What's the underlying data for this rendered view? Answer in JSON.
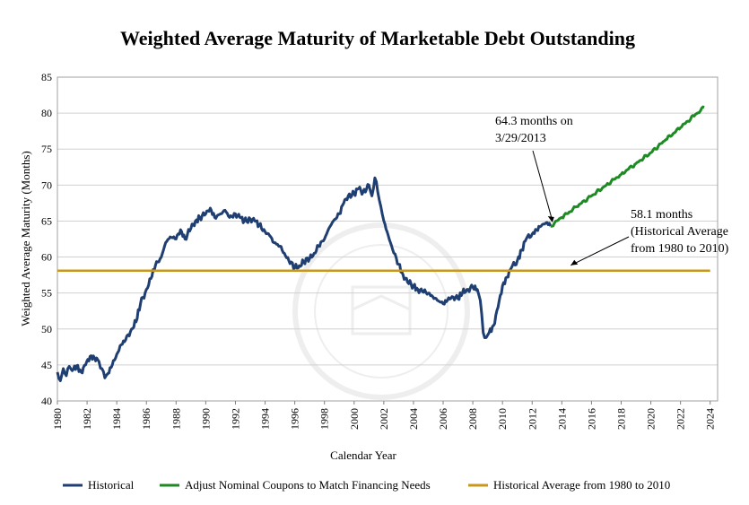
{
  "chart_data": {
    "type": "line",
    "title": "Weighted Average Maturity of Marketable Debt Outstanding",
    "xlabel": "Calendar Year",
    "ylabel": "Weighted Average Maturity (Months)",
    "xlim": [
      1980,
      2024.5
    ],
    "ylim": [
      40,
      85
    ],
    "y_ticks": [
      40,
      45,
      50,
      55,
      60,
      65,
      70,
      75,
      80,
      85
    ],
    "x_ticks": [
      1980,
      1982,
      1984,
      1986,
      1988,
      1990,
      1992,
      1994,
      1996,
      1998,
      2000,
      2002,
      2004,
      2006,
      2008,
      2010,
      2012,
      2014,
      2016,
      2018,
      2020,
      2022,
      2024
    ],
    "x_tick_labels": [
      "1980",
      "1982",
      "1984",
      "1986",
      "1988",
      "1990",
      "1992",
      "1994",
      "1996",
      "1998",
      "2000",
      "2002",
      "2004",
      "2006",
      "2008",
      "2010",
      "2012",
      "2014",
      "2016",
      "2018",
      "2020",
      "2022",
      "2024"
    ],
    "grid": "horizontal",
    "legend_position": "bottom",
    "series": [
      {
        "name": "Historical",
        "color": "#1f3f73",
        "points": [
          [
            1980.0,
            44.0
          ],
          [
            1980.2,
            42.8
          ],
          [
            1980.4,
            44.5
          ],
          [
            1980.6,
            43.5
          ],
          [
            1980.8,
            44.8
          ],
          [
            1981.0,
            44.2
          ],
          [
            1981.3,
            44.9
          ],
          [
            1981.6,
            44.0
          ],
          [
            1981.9,
            45.0
          ],
          [
            1982.2,
            46.2
          ],
          [
            1982.5,
            46.0
          ],
          [
            1982.8,
            45.5
          ],
          [
            1983.0,
            44.5
          ],
          [
            1983.2,
            43.2
          ],
          [
            1983.4,
            43.8
          ],
          [
            1983.7,
            45.0
          ],
          [
            1984.0,
            46.5
          ],
          [
            1984.3,
            47.8
          ],
          [
            1984.6,
            48.5
          ],
          [
            1985.0,
            50.0
          ],
          [
            1985.3,
            51.0
          ],
          [
            1985.6,
            53.5
          ],
          [
            1986.0,
            55.5
          ],
          [
            1986.3,
            57.0
          ],
          [
            1986.6,
            58.8
          ],
          [
            1987.0,
            60.0
          ],
          [
            1987.3,
            62.0
          ],
          [
            1987.6,
            62.8
          ],
          [
            1988.0,
            62.5
          ],
          [
            1988.3,
            63.8
          ],
          [
            1988.6,
            62.5
          ],
          [
            1989.0,
            64.0
          ],
          [
            1989.3,
            65.0
          ],
          [
            1989.6,
            65.5
          ],
          [
            1990.0,
            66.0
          ],
          [
            1990.3,
            66.8
          ],
          [
            1990.6,
            65.5
          ],
          [
            1991.0,
            66.0
          ],
          [
            1991.3,
            66.5
          ],
          [
            1991.6,
            65.5
          ],
          [
            1992.0,
            66.0
          ],
          [
            1992.3,
            65.5
          ],
          [
            1992.6,
            65.0
          ],
          [
            1993.0,
            65.3
          ],
          [
            1993.3,
            65.0
          ],
          [
            1993.6,
            64.5
          ],
          [
            1994.0,
            63.5
          ],
          [
            1994.3,
            63.0
          ],
          [
            1994.6,
            62.0
          ],
          [
            1995.0,
            61.5
          ],
          [
            1995.3,
            60.5
          ],
          [
            1995.6,
            59.5
          ],
          [
            1996.0,
            58.5
          ],
          [
            1996.3,
            58.8
          ],
          [
            1996.6,
            59.3
          ],
          [
            1997.0,
            59.8
          ],
          [
            1997.3,
            60.5
          ],
          [
            1997.6,
            61.5
          ],
          [
            1998.0,
            62.5
          ],
          [
            1998.3,
            64.0
          ],
          [
            1998.6,
            65.0
          ],
          [
            1999.0,
            66.0
          ],
          [
            1999.3,
            67.5
          ],
          [
            1999.6,
            68.5
          ],
          [
            2000.0,
            68.8
          ],
          [
            2000.3,
            69.5
          ],
          [
            2000.6,
            69.0
          ],
          [
            2001.0,
            70.0
          ],
          [
            2001.2,
            68.5
          ],
          [
            2001.4,
            71.0
          ],
          [
            2001.6,
            69.0
          ],
          [
            2001.8,
            67.0
          ],
          [
            2002.0,
            65.0
          ],
          [
            2002.3,
            63.0
          ],
          [
            2002.6,
            61.0
          ],
          [
            2003.0,
            59.0
          ],
          [
            2003.3,
            57.5
          ],
          [
            2003.6,
            56.5
          ],
          [
            2004.0,
            56.0
          ],
          [
            2004.3,
            55.5
          ],
          [
            2004.6,
            55.2
          ],
          [
            2005.0,
            55.0
          ],
          [
            2005.3,
            54.5
          ],
          [
            2005.6,
            54.0
          ],
          [
            2006.0,
            53.5
          ],
          [
            2006.3,
            54.0
          ],
          [
            2006.6,
            54.5
          ],
          [
            2007.0,
            54.2
          ],
          [
            2007.3,
            55.0
          ],
          [
            2007.6,
            55.5
          ],
          [
            2008.0,
            55.8
          ],
          [
            2008.3,
            55.5
          ],
          [
            2008.5,
            54.0
          ],
          [
            2008.7,
            49.5
          ],
          [
            2008.9,
            48.8
          ],
          [
            2009.1,
            49.5
          ],
          [
            2009.4,
            50.5
          ],
          [
            2009.7,
            53.0
          ],
          [
            2010.0,
            56.0
          ],
          [
            2010.3,
            57.2
          ],
          [
            2010.6,
            58.5
          ],
          [
            2011.0,
            59.5
          ],
          [
            2011.3,
            61.0
          ],
          [
            2011.6,
            62.5
          ],
          [
            2012.0,
            63.2
          ],
          [
            2012.3,
            63.8
          ],
          [
            2012.6,
            64.3
          ],
          [
            2013.0,
            64.8
          ],
          [
            2013.24,
            64.3
          ]
        ]
      },
      {
        "name": "Adjust Nominal Coupons to Match Financing Needs",
        "color": "#1e8a23",
        "points": [
          [
            2013.24,
            64.3
          ],
          [
            2014.0,
            65.5
          ],
          [
            2015.0,
            67.0
          ],
          [
            2016.0,
            68.5
          ],
          [
            2017.0,
            70.0
          ],
          [
            2018.0,
            71.5
          ],
          [
            2019.0,
            73.0
          ],
          [
            2020.0,
            74.5
          ],
          [
            2021.0,
            76.3
          ],
          [
            2022.0,
            78.0
          ],
          [
            2023.0,
            79.8
          ],
          [
            2023.6,
            80.8
          ]
        ]
      },
      {
        "name": "Historical Average from 1980 to 2010",
        "color": "#c8971c",
        "points": [
          [
            1980.0,
            58.1
          ],
          [
            2024.0,
            58.1
          ]
        ]
      }
    ],
    "annotations": [
      {
        "line1": "64.3 months on",
        "line2": "3/29/2013",
        "x": 2013.24,
        "y": 64.3
      },
      {
        "line1": "58.1 months",
        "line2": "(Historical Average",
        "line3": "from 1980 to 2010)",
        "x": 2014.6,
        "y": 58.1
      }
    ]
  }
}
